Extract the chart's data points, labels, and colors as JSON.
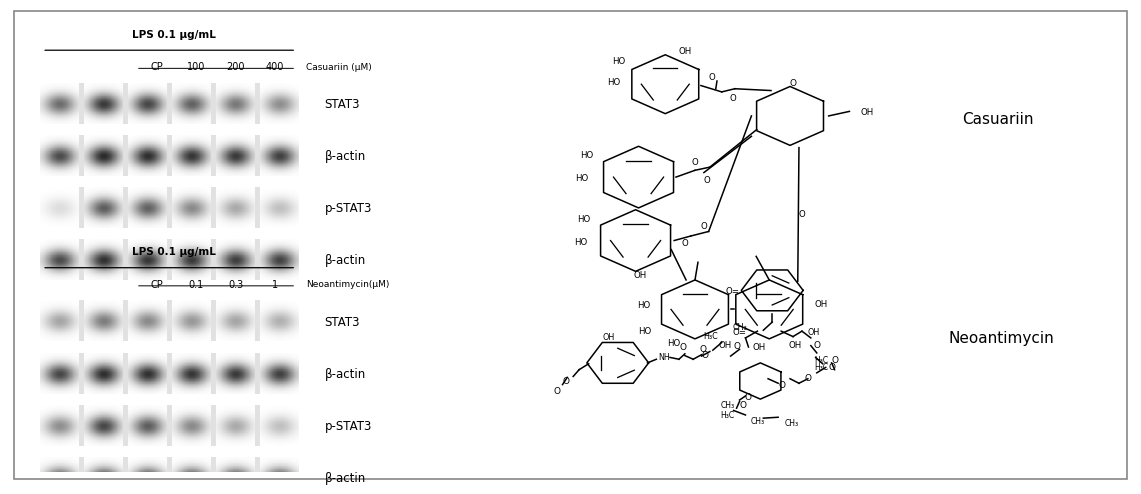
{
  "background_color": "#ffffff",
  "border_color": "#888888",
  "panel_top": {
    "lps_label": "LPS 0.1 μg/mL",
    "conc_labels": [
      "CP",
      "100",
      "200",
      "400"
    ],
    "conc_label_suffix": "Casuariin (μM)",
    "band_labels": [
      "STAT3",
      "β-actin",
      "p-STAT3",
      "β-actin"
    ],
    "stat3_intensities": [
      0.65,
      0.88,
      0.82,
      0.7,
      0.6,
      0.5
    ],
    "bactin1_intensities": [
      0.8,
      0.95,
      0.93,
      0.9,
      0.88,
      0.85
    ],
    "pstat3_intensities": [
      0.15,
      0.72,
      0.7,
      0.52,
      0.38,
      0.28
    ],
    "bactin2_intensities": [
      0.8,
      0.92,
      0.9,
      0.88,
      0.86,
      0.84
    ]
  },
  "panel_bottom": {
    "lps_label": "LPS 0.1 μg/mL",
    "conc_labels": [
      "CP",
      "0.1",
      "0.3",
      "1"
    ],
    "conc_label_suffix": "Neoantimycin(μM)",
    "band_labels": [
      "STAT3",
      "β-actin",
      "p-STAT3",
      "β-actin"
    ],
    "stat3_intensities": [
      0.4,
      0.58,
      0.52,
      0.46,
      0.4,
      0.35
    ],
    "bactin1_intensities": [
      0.82,
      0.93,
      0.92,
      0.9,
      0.88,
      0.85
    ],
    "pstat3_intensities": [
      0.5,
      0.82,
      0.72,
      0.52,
      0.38,
      0.28
    ],
    "bactin2_intensities": [
      0.82,
      0.92,
      0.9,
      0.88,
      0.86,
      0.84
    ]
  },
  "casuariin_label": "Casuariin",
  "neoantimycin_label": "Neoantimycin"
}
